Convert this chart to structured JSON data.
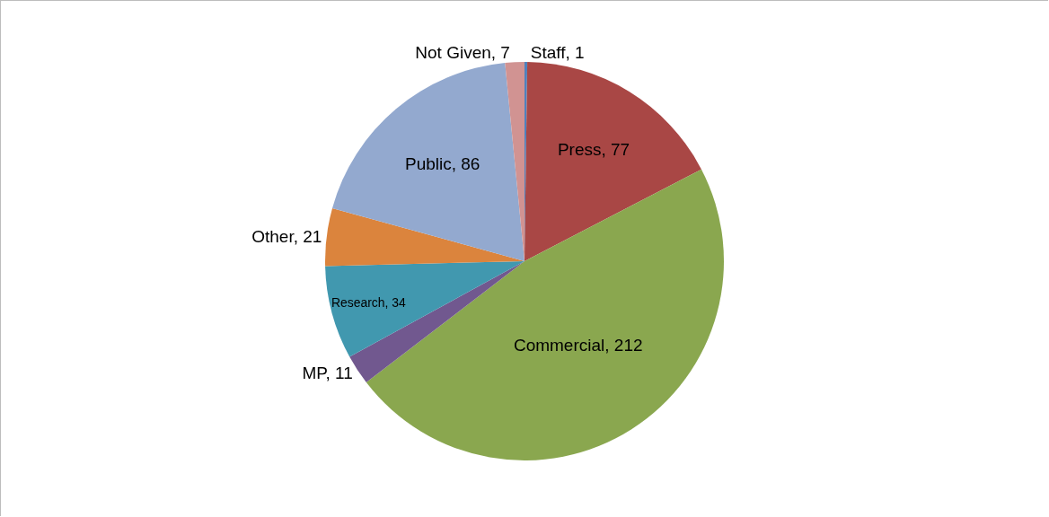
{
  "chart_data": {
    "type": "pie",
    "categories": [
      "Staff",
      "Press",
      "Commercial",
      "MP",
      "Research",
      "Other",
      "Public",
      "Not Given"
    ],
    "values": [
      1,
      77,
      212,
      11,
      34,
      21,
      86,
      7
    ],
    "value_labels": [
      ", 1",
      ", 77",
      ", 212",
      ", 11",
      ", 34",
      ", 21",
      ", 86",
      ", 7"
    ],
    "colors": [
      "#4f81bd",
      "#a94745",
      "#8aa74f",
      "#71588f",
      "#4198af",
      "#db843d",
      "#93a9cf",
      "#d19392"
    ],
    "legend": false
  }
}
